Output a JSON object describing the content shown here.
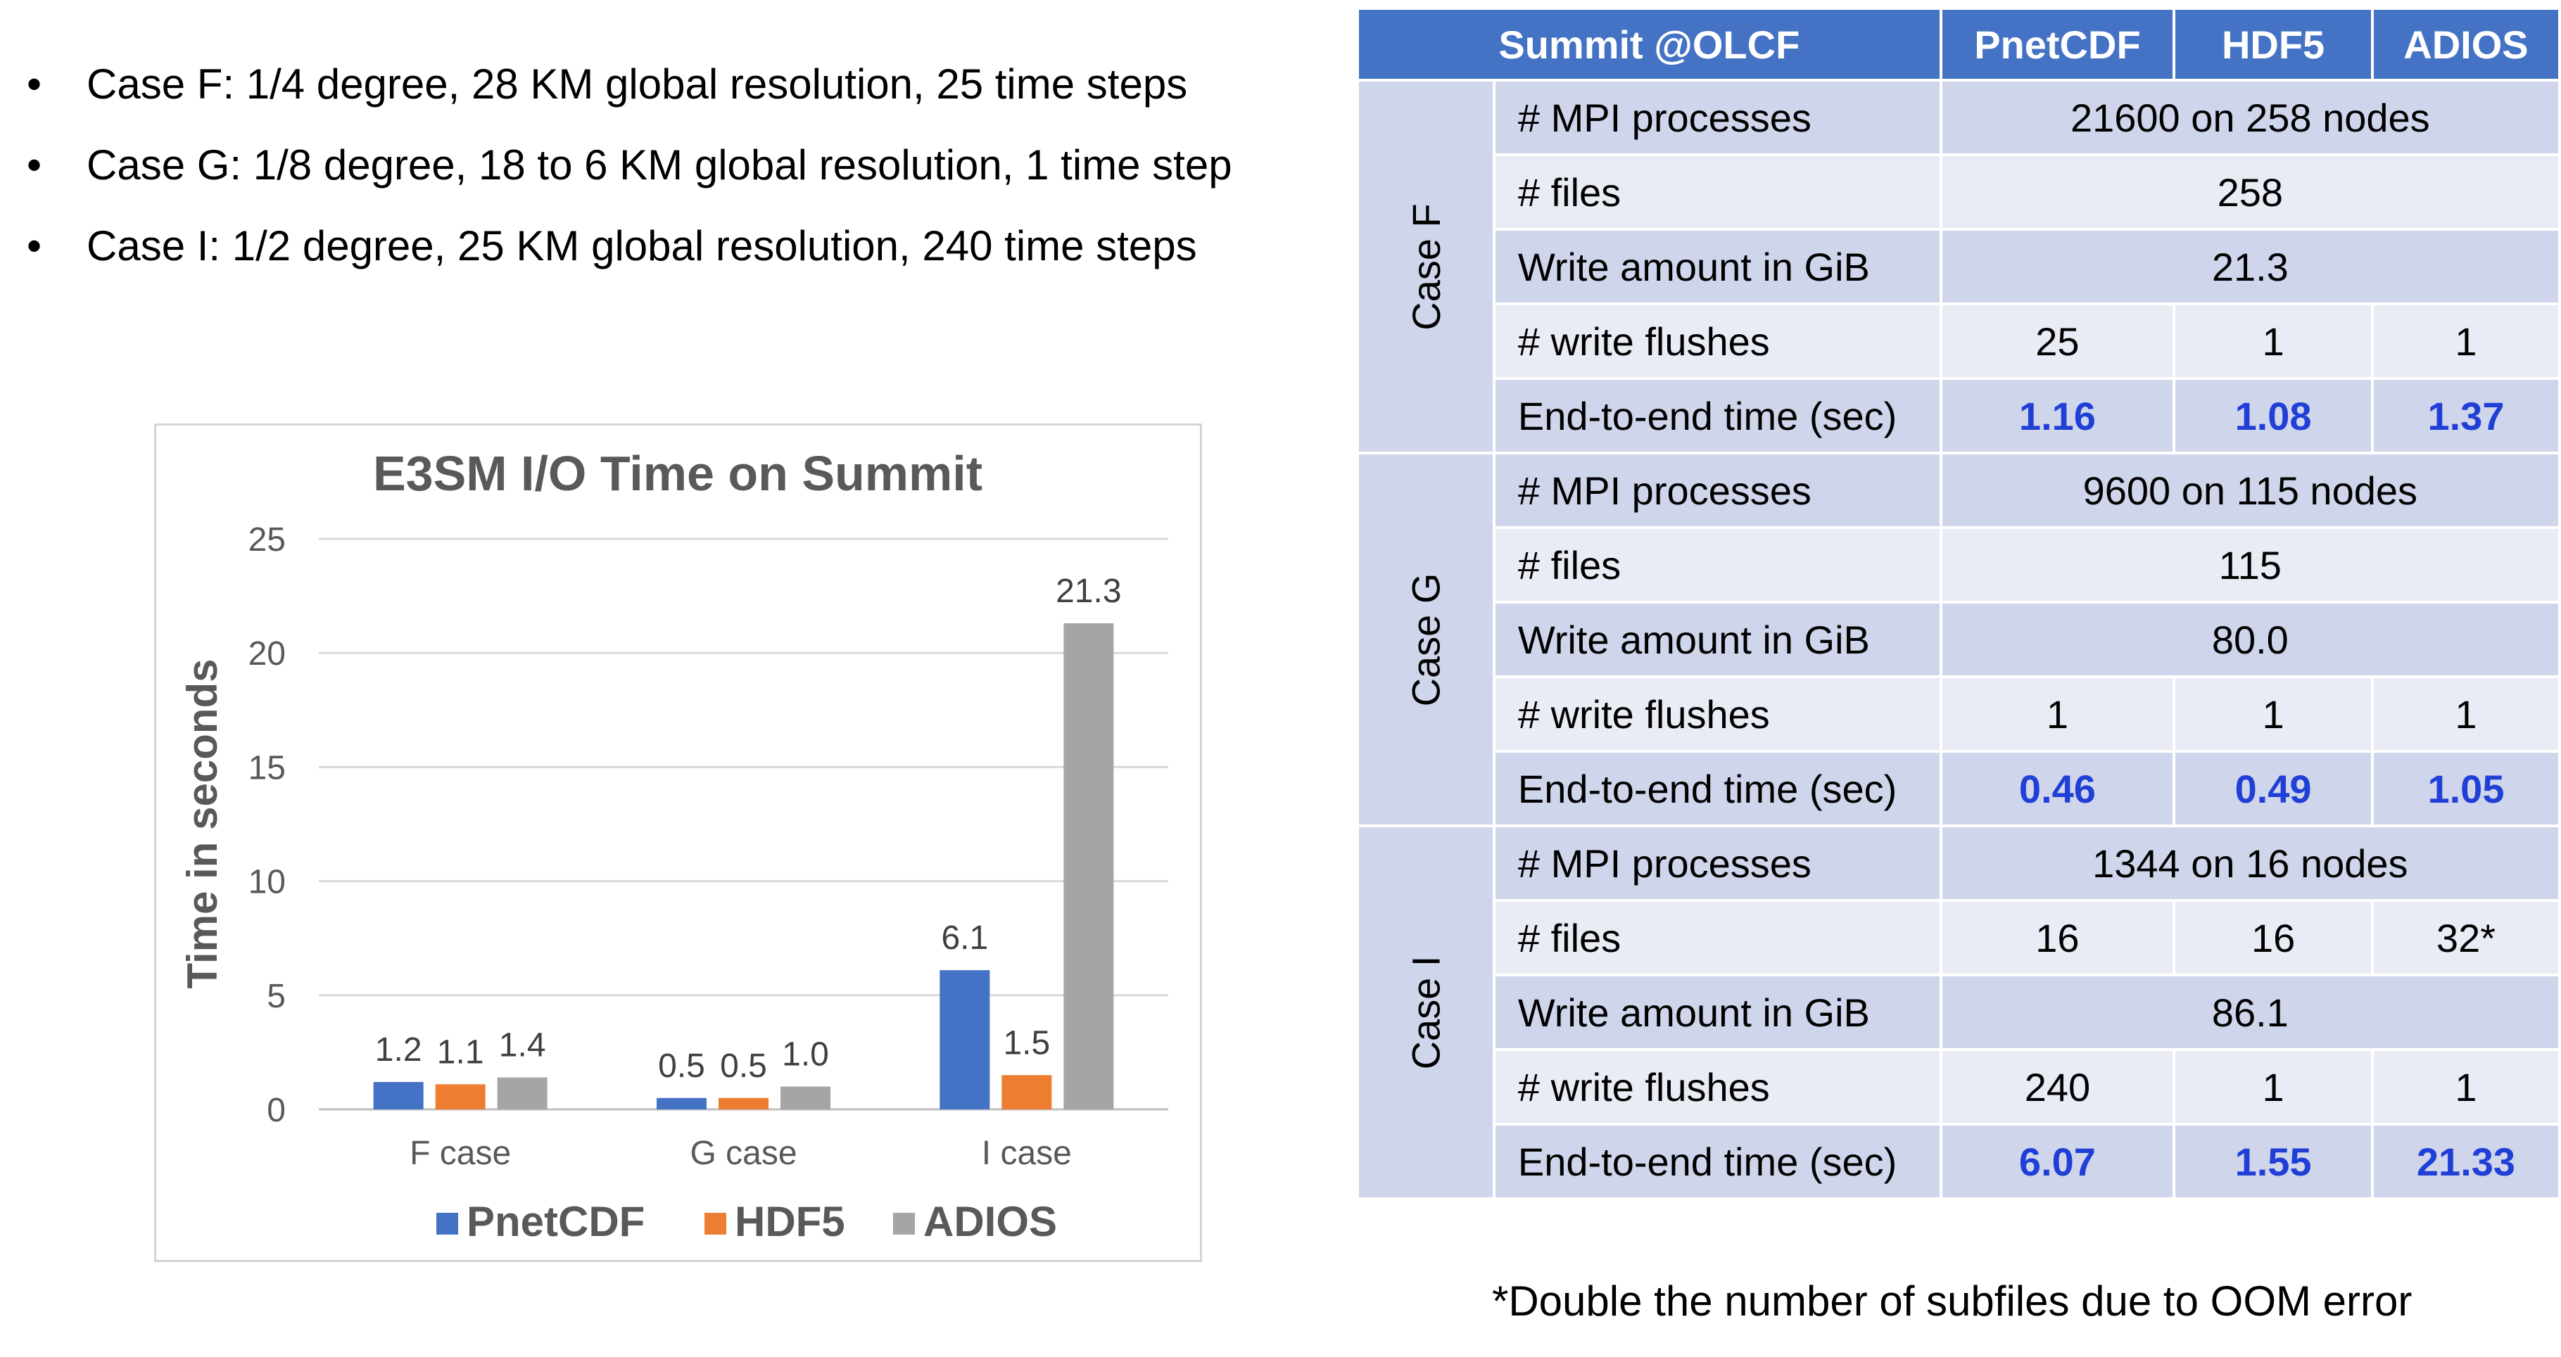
{
  "bullets": [
    "Case F: 1/4 degree, 28 KM global resolution, 25 time steps",
    "Case G:  1/8 degree, 18 to 6 KM global resolution, 1 time step",
    "Case I: 1/2 degree, 25 KM global resolution, 240 time steps"
  ],
  "bullet_symbol": "•",
  "colors": {
    "pnetcdf": "#4472c4",
    "hdf5": "#ed7d31",
    "adios": "#a5a5a5",
    "header": "#4472c4",
    "value_blue": "#1f3fd6"
  },
  "chart_data": {
    "type": "bar",
    "title": "E3SM I/O  Time on Summit",
    "ylabel": "Time in seconds",
    "xlabel": "",
    "categories": [
      "F case",
      "G case",
      "I case"
    ],
    "series": [
      {
        "name": "PnetCDF",
        "values": [
          1.2,
          0.5,
          6.1
        ],
        "labels": [
          "1.2",
          "0.5",
          "6.1"
        ]
      },
      {
        "name": "HDF5",
        "values": [
          1.1,
          0.5,
          1.5
        ],
        "labels": [
          "1.1",
          "0.5",
          "1.5"
        ]
      },
      {
        "name": "ADIOS",
        "values": [
          1.4,
          1.0,
          21.3
        ],
        "labels": [
          "1.4",
          "1.0",
          "21.3"
        ]
      }
    ],
    "ylim": [
      0,
      25
    ],
    "yticks": [
      0,
      5,
      10,
      15,
      20,
      25
    ],
    "grid": true,
    "legend": "bottom"
  },
  "table": {
    "header": [
      "Summit @OLCF",
      "PnetCDF",
      "HDF5",
      "ADIOS"
    ],
    "cases": [
      {
        "label": "Case F",
        "rows": [
          {
            "metric": "# MPI processes",
            "cells": [
              "21600 on 258 nodes"
            ]
          },
          {
            "metric": "# files",
            "cells": [
              "258"
            ]
          },
          {
            "metric": "Write amount in GiB",
            "cells": [
              "21.3"
            ]
          },
          {
            "metric": "# write flushes",
            "cells": [
              "25",
              "1",
              "1"
            ]
          },
          {
            "metric": "End-to-end time (sec)",
            "cells": [
              "1.16",
              "1.08",
              "1.37"
            ],
            "highlight": true
          }
        ]
      },
      {
        "label": "Case G",
        "rows": [
          {
            "metric": "# MPI processes",
            "cells": [
              "9600 on 115 nodes"
            ]
          },
          {
            "metric": "# files",
            "cells": [
              "115"
            ]
          },
          {
            "metric": "Write amount in GiB",
            "cells": [
              "80.0"
            ]
          },
          {
            "metric": "# write flushes",
            "cells": [
              "1",
              "1",
              "1"
            ]
          },
          {
            "metric": "End-to-end time (sec)",
            "cells": [
              "0.46",
              "0.49",
              "1.05"
            ],
            "highlight": true
          }
        ]
      },
      {
        "label": "Case I",
        "rows": [
          {
            "metric": "# MPI processes",
            "cells": [
              "1344 on 16 nodes"
            ]
          },
          {
            "metric": "# files",
            "cells": [
              "16",
              "16",
              "32*"
            ]
          },
          {
            "metric": "Write amount in GiB",
            "cells": [
              "86.1"
            ]
          },
          {
            "metric": "# write flushes",
            "cells": [
              "240",
              "1",
              "1"
            ]
          },
          {
            "metric": "End-to-end time (sec)",
            "cells": [
              "6.07",
              "1.55",
              "21.33"
            ],
            "highlight": true
          }
        ]
      }
    ]
  },
  "footnote": "*Double the number of subfiles due to OOM error"
}
